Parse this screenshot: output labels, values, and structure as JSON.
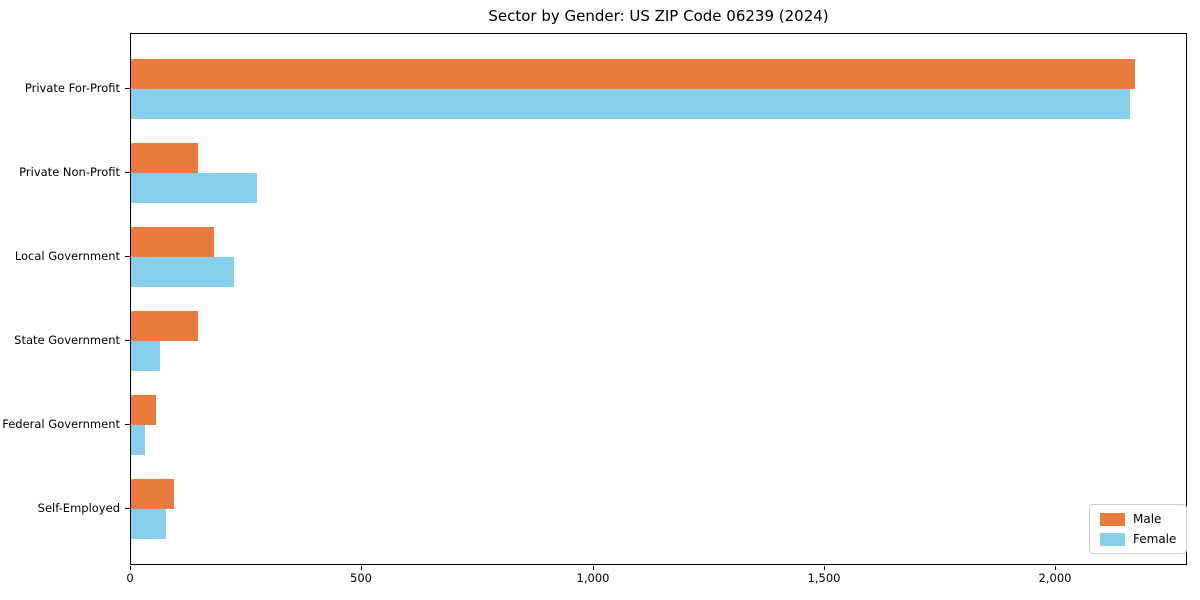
{
  "figure": {
    "background": "#ffffff",
    "axis_color": "#000000"
  },
  "chart_data": {
    "type": "bar",
    "orientation": "horizontal",
    "title": "Sector by Gender: US ZIP Code 06239 (2024)",
    "categories": [
      "Private For-Profit",
      "Private Non-Profit",
      "Local Government",
      "State Government",
      "Federal Government",
      "Self-Employed"
    ],
    "series": [
      {
        "name": "Male",
        "color": "#e97c3d",
        "values": [
          2170,
          144,
          180,
          145,
          53,
          92
        ]
      },
      {
        "name": "Female",
        "color": "#87ceeb",
        "values": [
          2160,
          272,
          223,
          63,
          30,
          76
        ]
      }
    ],
    "xlabel": "",
    "ylabel": "",
    "xlim": [
      0,
      2283
    ],
    "xticks": [
      0,
      500,
      1000,
      1500,
      2000
    ],
    "xtick_labels": [
      "0",
      "500",
      "1,000",
      "1,500",
      "2,000"
    ],
    "grid": false,
    "legend": {
      "position": "lower-right",
      "items": [
        "Male",
        "Female"
      ]
    }
  }
}
